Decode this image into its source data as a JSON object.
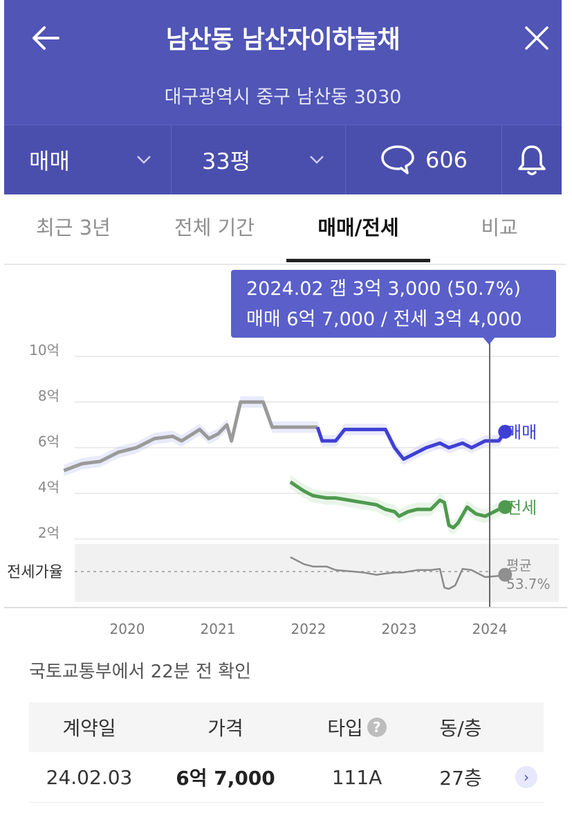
{
  "header": {
    "title": "남산동 남산자이하늘채",
    "address": "대구광역시 중구 남산동 3030",
    "deal_type": "매매",
    "size": "33평",
    "comment_count": "606"
  },
  "tabs": [
    {
      "label": "최근 3년"
    },
    {
      "label": "전체 기간"
    },
    {
      "label": "매매/전세"
    },
    {
      "label": "비교"
    }
  ],
  "tooltip": {
    "line1": "2024.02  갭 3억 3,000 (50.7%)",
    "line2": "매매 6억 7,000 / 전세 3억 4,000"
  },
  "colors": {
    "header": "#5055b6",
    "sale": "#3f3fd6",
    "jeonse": "#4f9a4f",
    "past": "#9a9a9a",
    "ratio": "#8a8a8a"
  },
  "chart_data": {
    "type": "line",
    "y_ticks": [
      "10억",
      "8억",
      "6억",
      "4억",
      "2억"
    ],
    "y_values": [
      10,
      8,
      6,
      4,
      2
    ],
    "x_ticks": [
      "2020",
      "2021",
      "2022",
      "2023",
      "2024"
    ],
    "series_labels": {
      "sale": "매매",
      "jeonse": "전세"
    },
    "ratio_label": "전세가율",
    "ratio_avg_label": "평균",
    "ratio_avg_value": "53.7%",
    "sale_older": [
      [
        2019.3,
        5.0
      ],
      [
        2019.5,
        5.3
      ],
      [
        2019.7,
        5.4
      ],
      [
        2019.9,
        5.8
      ],
      [
        2020.1,
        6.0
      ],
      [
        2020.3,
        6.4
      ],
      [
        2020.5,
        6.5
      ],
      [
        2020.6,
        6.3
      ],
      [
        2020.8,
        6.8
      ],
      [
        2020.9,
        6.4
      ],
      [
        2021.0,
        6.6
      ],
      [
        2021.1,
        7.0
      ],
      [
        2021.15,
        6.3
      ],
      [
        2021.25,
        8.0
      ],
      [
        2021.5,
        8.0
      ],
      [
        2021.6,
        6.9
      ],
      [
        2022.0,
        6.9
      ],
      [
        2022.1,
        6.9
      ]
    ],
    "sale": [
      [
        2022.1,
        6.9
      ],
      [
        2022.15,
        6.3
      ],
      [
        2022.3,
        6.3
      ],
      [
        2022.4,
        6.8
      ],
      [
        2022.7,
        6.8
      ],
      [
        2022.85,
        6.8
      ],
      [
        2022.95,
        6.0
      ],
      [
        2023.05,
        5.5
      ],
      [
        2023.15,
        5.7
      ],
      [
        2023.3,
        6.0
      ],
      [
        2023.45,
        6.2
      ],
      [
        2023.55,
        6.0
      ],
      [
        2023.7,
        6.2
      ],
      [
        2023.8,
        6.0
      ],
      [
        2023.95,
        6.3
      ],
      [
        2024.1,
        6.3
      ],
      [
        2024.17,
        6.7
      ]
    ],
    "jeonse": [
      [
        2021.8,
        4.5
      ],
      [
        2021.95,
        4.1
      ],
      [
        2022.05,
        3.9
      ],
      [
        2022.2,
        3.8
      ],
      [
        2022.3,
        3.8
      ],
      [
        2022.45,
        3.7
      ],
      [
        2022.6,
        3.6
      ],
      [
        2022.75,
        3.5
      ],
      [
        2022.85,
        3.3
      ],
      [
        2022.95,
        3.2
      ],
      [
        2023.0,
        3.0
      ],
      [
        2023.1,
        3.2
      ],
      [
        2023.2,
        3.3
      ],
      [
        2023.35,
        3.3
      ],
      [
        2023.45,
        3.7
      ],
      [
        2023.5,
        3.6
      ],
      [
        2023.55,
        2.6
      ],
      [
        2023.6,
        2.5
      ],
      [
        2023.65,
        2.7
      ],
      [
        2023.75,
        3.4
      ],
      [
        2023.85,
        3.1
      ],
      [
        2023.95,
        3.0
      ],
      [
        2024.1,
        3.3
      ],
      [
        2024.17,
        3.4
      ]
    ],
    "ratio_pct": [
      [
        2021.8,
        66
      ],
      [
        2021.95,
        60
      ],
      [
        2022.05,
        58
      ],
      [
        2022.2,
        58
      ],
      [
        2022.3,
        55
      ],
      [
        2022.45,
        54
      ],
      [
        2022.6,
        53
      ],
      [
        2022.75,
        51
      ],
      [
        2022.85,
        52
      ],
      [
        2022.95,
        53
      ],
      [
        2023.05,
        53
      ],
      [
        2023.2,
        55
      ],
      [
        2023.35,
        55
      ],
      [
        2023.45,
        56
      ],
      [
        2023.5,
        40
      ],
      [
        2023.55,
        39
      ],
      [
        2023.62,
        42
      ],
      [
        2023.7,
        56
      ],
      [
        2023.8,
        55
      ],
      [
        2023.95,
        49
      ],
      [
        2024.1,
        50
      ],
      [
        2024.17,
        51
      ]
    ],
    "selected": {
      "x": 2024.17,
      "sale": 6.7,
      "jeonse": 3.4,
      "ratio": 51
    }
  },
  "table": {
    "source_text": "국토교통부에서 22분 전 확인",
    "headers": {
      "date": "계약일",
      "price": "가격",
      "type": "타입",
      "floor": "동/층"
    },
    "help_icon": "?",
    "rows": [
      {
        "date": "24.02.03",
        "price": "6억 7,000",
        "type": "111A",
        "floor": "27층"
      }
    ]
  }
}
